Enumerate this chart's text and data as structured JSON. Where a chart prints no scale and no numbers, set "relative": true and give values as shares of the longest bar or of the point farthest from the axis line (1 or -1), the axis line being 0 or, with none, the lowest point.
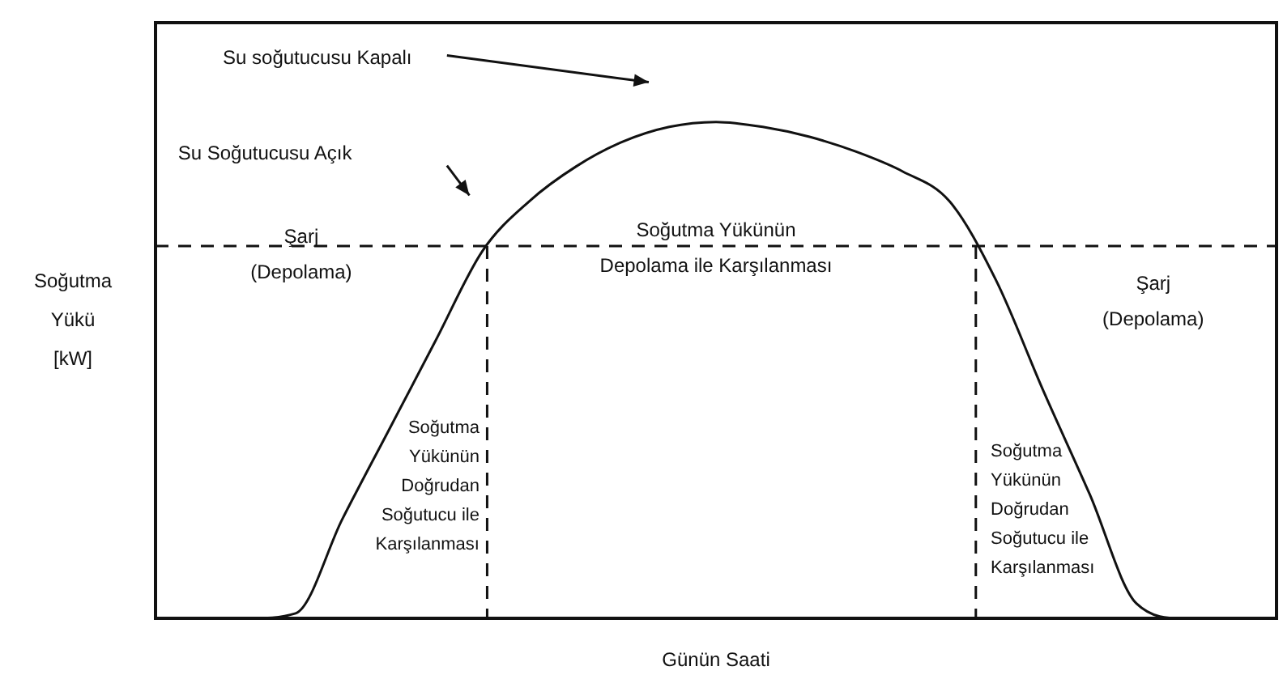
{
  "chart_data": {
    "type": "line",
    "relative": true,
    "xlabel": "Günün Saati",
    "ylabel": "Soğutma\nYükü\n[kW]",
    "categories": [
      null,
      null,
      null,
      null,
      null,
      null,
      null,
      null,
      null,
      null,
      null,
      null,
      null,
      null,
      null,
      null,
      null,
      null,
      null,
      null,
      null,
      null,
      null,
      null,
      null
    ],
    "series": [
      {
        "color": "#111111",
        "values": [
          0,
          0,
          0,
          0.01,
          0.2,
          0.38,
          0.56,
          0.74,
          0.84,
          0.91,
          0.96,
          0.99,
          1,
          0.99,
          0.97,
          0.94,
          0.9,
          0.84,
          0.68,
          0.46,
          0.25,
          0.03,
          0,
          0,
          0
        ]
      }
    ],
    "ref_lines": [
      {
        "axis": "y",
        "value": 0.75,
        "line_style": "dashed",
        "color": "#111111"
      }
    ],
    "annotations": [
      "Su soğutucusu Kapalı",
      "Su Soğutucusu Açık",
      "Şarj\n(Depolama)",
      "Soğutma Yükünün\nDepolama ile Karşılanması",
      "Şarj\n(Depolama)",
      "Soğutma\nYükünün\nDoğrudan\nSoğutucu ile\nKarşılanması",
      "Soğutma\nYükünün\nDoğrudan\nSoğutucu ile\nKarşılanması"
    ],
    "grid": false,
    "legend": false,
    "marker": "none",
    "line_style": "solid"
  }
}
